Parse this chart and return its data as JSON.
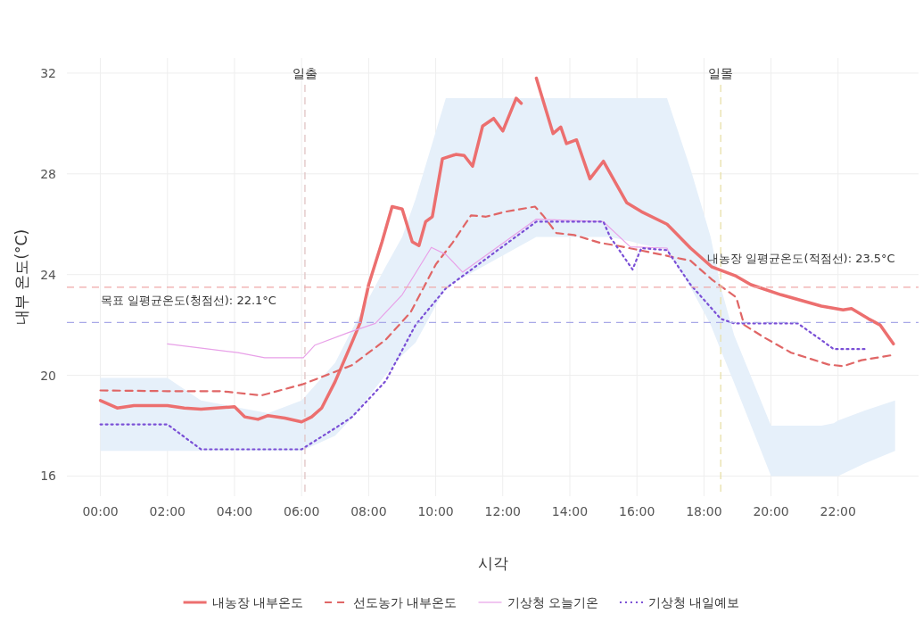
{
  "chart_data": {
    "type": "line",
    "xlabel": "시각",
    "ylabel": "내부 온도(°C)",
    "xlim": [
      -1,
      24.4
    ],
    "ylim": [
      15.2,
      32.6
    ],
    "xticks": [
      {
        "value": 0,
        "label": "00:00"
      },
      {
        "value": 2,
        "label": "02:00"
      },
      {
        "value": 4,
        "label": "04:00"
      },
      {
        "value": 6,
        "label": "06:00"
      },
      {
        "value": 8,
        "label": "08:00"
      },
      {
        "value": 10,
        "label": "10:00"
      },
      {
        "value": 12,
        "label": "12:00"
      },
      {
        "value": 14,
        "label": "14:00"
      },
      {
        "value": 16,
        "label": "16:00"
      },
      {
        "value": 18,
        "label": "18:00"
      },
      {
        "value": 20,
        "label": "20:00"
      },
      {
        "value": 22,
        "label": "22:00"
      }
    ],
    "yticks": [
      16,
      20,
      24,
      28,
      32
    ],
    "grid": true,
    "legend": "bottom",
    "series": [
      {
        "name": "내농장 내부온도",
        "color": "#ec6f6f",
        "line_style": "solid",
        "x": [
          0,
          0.5,
          1,
          2,
          2.5,
          3,
          4,
          4.3,
          4.7,
          5,
          5.5,
          6,
          6.3,
          6.6,
          7,
          7.5,
          7.75,
          8,
          8.4,
          8.7,
          9,
          9.3,
          9.5,
          9.7,
          9.9,
          10.2,
          10.6,
          10.85,
          11.1,
          11.4,
          11.73,
          12,
          12.4,
          12.55
        ],
        "values": [
          19.0,
          18.7,
          18.8,
          18.8,
          18.7,
          18.65,
          18.75,
          18.35,
          18.25,
          18.4,
          18.3,
          18.15,
          18.35,
          18.7,
          19.75,
          21.3,
          22.1,
          23.6,
          25.3,
          26.7,
          26.6,
          25.3,
          25.15,
          26.1,
          26.3,
          28.6,
          28.77,
          28.73,
          28.3,
          29.9,
          30.2,
          29.7,
          31.0,
          30.8
        ]
      },
      {
        "color": "#ec6f6f",
        "line_style": "solid",
        "x": [
          13,
          13.5,
          13.73,
          13.9,
          14.2,
          14.6,
          15,
          15.7,
          16.13,
          16.9,
          17.6,
          18.24,
          18.96,
          19.4,
          20.3,
          21.5,
          22.15,
          22.4,
          22.9,
          23.25,
          23.65
        ],
        "values": [
          31.8,
          29.6,
          29.86,
          29.2,
          29.35,
          27.8,
          28.5,
          26.85,
          26.5,
          26.0,
          25.05,
          24.3,
          23.94,
          23.6,
          23.2,
          22.75,
          22.6,
          22.65,
          22.25,
          22.0,
          21.25
        ]
      },
      {
        "name": "선도농가 내부온도",
        "color": "#e06666",
        "line_style": "dashed",
        "x": [
          0,
          2,
          3.6,
          4.8,
          6.05,
          7.5,
          8.5,
          9.25,
          10,
          10.5,
          11.05,
          11.5,
          12.1,
          12.96,
          13.2,
          13.6,
          14.13,
          14.9,
          15.4,
          15.97,
          16.7,
          17.6,
          18.24,
          18.96,
          19.2,
          19.8,
          20.6,
          21.7,
          22.15,
          22.7,
          23.6
        ],
        "values": [
          19.4,
          19.37,
          19.37,
          19.2,
          19.65,
          20.4,
          21.4,
          22.5,
          24.4,
          25.26,
          26.35,
          26.3,
          26.5,
          26.7,
          26.35,
          25.65,
          25.57,
          25.26,
          25.15,
          25.0,
          24.8,
          24.55,
          23.8,
          23.1,
          22.0,
          21.5,
          20.9,
          20.43,
          20.36,
          20.6,
          20.8
        ]
      },
      {
        "name": "기상청 오늘기온",
        "color": "#e8a0e8",
        "line_style": "solid",
        "x": [
          2,
          4.1,
          4.9,
          6.05,
          6.4,
          7.4,
          8.2,
          9,
          9.87,
          10.3,
          10.8,
          13,
          15,
          15.8,
          16.9,
          17
        ],
        "values": [
          21.25,
          20.9,
          20.7,
          20.7,
          21.2,
          21.7,
          22.06,
          23.2,
          25.08,
          24.8,
          24.1,
          26.2,
          26.1,
          25.1,
          25.05,
          24.7
        ]
      },
      {
        "name": "기상청 내일예보",
        "color": "#7a4fd6",
        "line_style": "dotted",
        "x": [
          0,
          2,
          3,
          5,
          6,
          7,
          7.5,
          8.5,
          9,
          9.4,
          10.3,
          13,
          15,
          15.2,
          15.87,
          16.13,
          16.9,
          17.6,
          18.2,
          18.5,
          18.9,
          20,
          20.8,
          21.5,
          21.87,
          22,
          22.8,
          23.7
        ],
        "values": [
          18.05,
          18.05,
          17.06,
          17.06,
          17.06,
          17.9,
          18.34,
          19.76,
          21.0,
          22.0,
          23.45,
          26.1,
          26.1,
          25.5,
          24.2,
          25.05,
          24.97,
          23.6,
          22.7,
          22.24,
          22.06,
          22.06,
          22.06,
          21.4,
          21.04,
          21.04,
          21.04,
          null
        ],
        "lower": [
          17.0,
          17.0,
          17.0,
          17.0,
          17.0,
          17.6,
          18.3,
          20.0,
          20.8,
          21.3,
          23.5,
          25.5,
          25.5,
          25.5,
          25.3,
          25.2,
          25.0,
          23.5,
          22.0,
          21.0,
          19.7,
          16.0,
          16.0,
          16.0,
          16.0,
          16.0,
          16.5,
          17.0
        ],
        "upper": [
          19.9,
          19.9,
          19.0,
          18.5,
          19.0,
          20.5,
          21.8,
          24.3,
          25.5,
          27.0,
          31.0,
          31.0,
          31.0,
          31.0,
          31.0,
          31.0,
          31.0,
          28.2,
          25.5,
          23.5,
          21.6,
          18.0,
          18.0,
          18.0,
          18.1,
          18.2,
          18.6,
          19.0
        ]
      }
    ],
    "ref_lines": [
      {
        "axis": "x",
        "value": 6.1,
        "label": "일출",
        "color": "#e0c4c4",
        "line_style": "dashed"
      },
      {
        "axis": "x",
        "value": 18.5,
        "label": "일몰",
        "color": "#e8e0a8",
        "line_style": "dashed"
      },
      {
        "axis": "y",
        "value": 22.1,
        "label": "목표 일평균온도(청점선): 22.1°C",
        "color": "#a8a8e8",
        "line_style": "dashed"
      },
      {
        "axis": "y",
        "value": 23.5,
        "label": "내농장 일평균온도(적점선): 23.5°C",
        "color": "#f0a8a8",
        "line_style": "dashed"
      }
    ]
  }
}
